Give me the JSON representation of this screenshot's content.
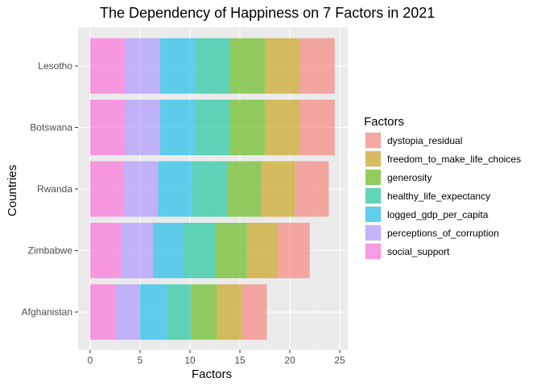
{
  "chart_data": {
    "type": "bar",
    "orientation": "horizontal",
    "stacked": true,
    "title": "The Dependency of Happiness on 7 Factors in 2021",
    "xlabel": "Factors",
    "ylabel": "Countries",
    "xlim": [
      0,
      25
    ],
    "x_ticks": [
      "0",
      "5",
      "10",
      "15",
      "20",
      "25"
    ],
    "grid": true,
    "legend_title": "Factors",
    "legend_position": "right",
    "categories": [
      "Lesotho",
      "Botswana",
      "Rwanda",
      "Zimbabwe",
      "Afghanistan"
    ],
    "stack_order": [
      "social_support",
      "perceptions_of_corruption",
      "logged_gdp_per_capita",
      "healthy_life_expectancy",
      "generosity",
      "freedom_to_make_life_choices",
      "dystopia_residual"
    ],
    "series": [
      {
        "name": "dystopia_residual",
        "color": "#F8766D",
        "values": [
          3.5,
          3.5,
          3.4,
          3.2,
          2.5
        ]
      },
      {
        "name": "freedom_to_make_life_choices",
        "color": "#C49A00",
        "values": [
          3.5,
          3.5,
          3.4,
          3.1,
          2.5
        ]
      },
      {
        "name": "generosity",
        "color": "#53B400",
        "values": [
          3.5,
          3.5,
          3.4,
          3.2,
          2.6
        ]
      },
      {
        "name": "healthy_life_expectancy",
        "color": "#00C094",
        "values": [
          3.5,
          3.5,
          3.5,
          3.1,
          2.4
        ]
      },
      {
        "name": "logged_gdp_per_capita",
        "color": "#00B6EB",
        "values": [
          3.5,
          3.5,
          3.4,
          3.1,
          2.7
        ]
      },
      {
        "name": "perceptions_of_corruption",
        "color": "#A58AFF",
        "values": [
          3.5,
          3.5,
          3.4,
          3.2,
          2.5
        ]
      },
      {
        "name": "social_support",
        "color": "#FB61D7",
        "values": [
          3.5,
          3.5,
          3.4,
          3.1,
          2.5
        ]
      }
    ]
  }
}
